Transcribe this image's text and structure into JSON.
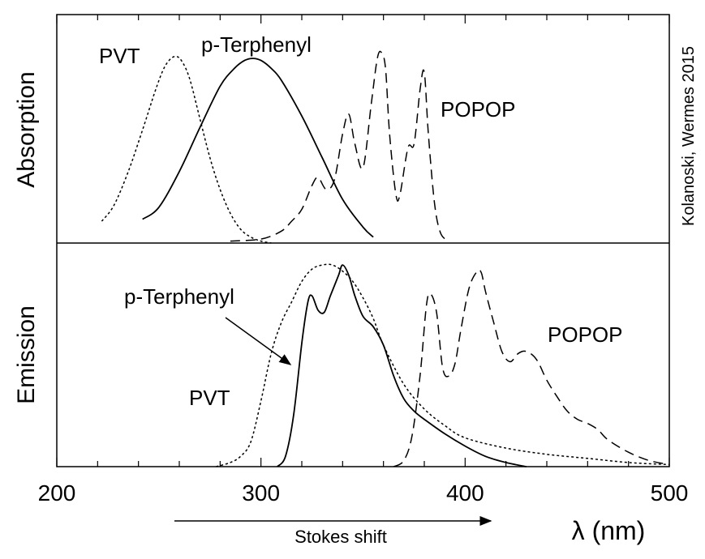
{
  "chart_data": {
    "type": "line",
    "credit": "Kolanoski, Wermes 2015",
    "xaxis": {
      "label": "λ (nm)",
      "range": [
        200,
        500
      ],
      "ticks": [
        200,
        300,
        400,
        500
      ],
      "minor_step": 20
    },
    "stokes_shift_label": "Stokes shift",
    "panels": [
      {
        "name": "Absorption",
        "ylabel": "Absorption",
        "y_range": [
          0,
          1
        ],
        "series": [
          {
            "name": "PVT",
            "label": "PVT",
            "style": "dotted",
            "x": [
              222,
              228,
              235,
              242,
              248,
              252,
              255,
              258,
              261,
              265,
              270,
              275,
              280,
              285,
              290,
              295,
              300,
              305
            ],
            "y": [
              0.11,
              0.19,
              0.36,
              0.57,
              0.76,
              0.87,
              0.92,
              0.94,
              0.92,
              0.83,
              0.63,
              0.43,
              0.27,
              0.15,
              0.07,
              0.03,
              0.01,
              0.0
            ]
          },
          {
            "name": "p-Terphenyl",
            "label": "p-Terphenyl",
            "style": "solid",
            "x": [
              242,
              250,
              260,
              270,
              280,
              287,
              292,
              296,
              300,
              305,
              310,
              320,
              330,
              340,
              350,
              355
            ],
            "y": [
              0.12,
              0.18,
              0.36,
              0.58,
              0.79,
              0.88,
              0.92,
              0.93,
              0.92,
              0.88,
              0.82,
              0.64,
              0.43,
              0.22,
              0.08,
              0.03
            ]
          },
          {
            "name": "POPOP",
            "label": "POPOP",
            "style": "dashed",
            "x": [
              285,
              300,
              310,
              315,
              320,
              325,
              328,
              332,
              336,
              340,
              343,
              346,
              350,
              354,
              357,
              359,
              361,
              363,
              366,
              368,
              372,
              375,
              378,
              380,
              382,
              385,
              388,
              392
            ],
            "y": [
              0.01,
              0.02,
              0.06,
              0.11,
              0.17,
              0.29,
              0.33,
              0.27,
              0.32,
              0.55,
              0.65,
              0.5,
              0.38,
              0.7,
              0.93,
              0.96,
              0.88,
              0.55,
              0.25,
              0.24,
              0.48,
              0.5,
              0.78,
              0.86,
              0.55,
              0.2,
              0.05,
              0.01
            ]
          }
        ]
      },
      {
        "name": "Emission",
        "ylabel": "Emission",
        "y_range": [
          0,
          1
        ],
        "series": [
          {
            "name": "PVT",
            "label": "PVT",
            "style": "dotted",
            "x": [
              278,
              285,
              290,
              295,
              300,
              305,
              310,
              315,
              320,
              325,
              330,
              335,
              340,
              345,
              350,
              355,
              360,
              370,
              380,
              390,
              400,
              420,
              440,
              460,
              480,
              500
            ],
            "y": [
              0.0,
              0.02,
              0.05,
              0.12,
              0.32,
              0.55,
              0.7,
              0.8,
              0.9,
              0.96,
              0.98,
              0.98,
              0.95,
              0.9,
              0.82,
              0.72,
              0.59,
              0.4,
              0.28,
              0.2,
              0.14,
              0.09,
              0.06,
              0.04,
              0.02,
              0.01
            ]
          },
          {
            "name": "p-Terphenyl",
            "label": "p-Terphenyl",
            "style": "solid",
            "x": [
              308,
              312,
              316,
              320,
              323,
              325,
              328,
              331,
              334,
              338,
              340,
              343,
              346,
              350,
              355,
              360,
              365,
              370,
              375,
              380,
              390,
              400,
              410,
              420,
              430
            ],
            "y": [
              0.0,
              0.05,
              0.25,
              0.6,
              0.8,
              0.83,
              0.76,
              0.75,
              0.83,
              0.93,
              0.98,
              0.93,
              0.83,
              0.73,
              0.68,
              0.59,
              0.44,
              0.33,
              0.27,
              0.23,
              0.16,
              0.1,
              0.05,
              0.02,
              0.0
            ]
          },
          {
            "name": "POPOP",
            "label": "POPOP",
            "style": "dashed",
            "x": [
              365,
              370,
              374,
              378,
              381,
              383,
              386,
              389,
              392,
              395,
              398,
              402,
              406,
              408,
              410,
              414,
              418,
              422,
              426,
              430,
              435,
              440,
              445,
              450,
              455,
              460,
              465,
              470,
              480,
              490,
              500
            ],
            "y": [
              0.0,
              0.03,
              0.15,
              0.45,
              0.78,
              0.84,
              0.75,
              0.48,
              0.44,
              0.5,
              0.67,
              0.87,
              0.95,
              0.94,
              0.85,
              0.7,
              0.56,
              0.51,
              0.55,
              0.56,
              0.52,
              0.42,
              0.34,
              0.27,
              0.23,
              0.21,
              0.18,
              0.13,
              0.07,
              0.03,
              0.01
            ]
          }
        ]
      }
    ]
  }
}
